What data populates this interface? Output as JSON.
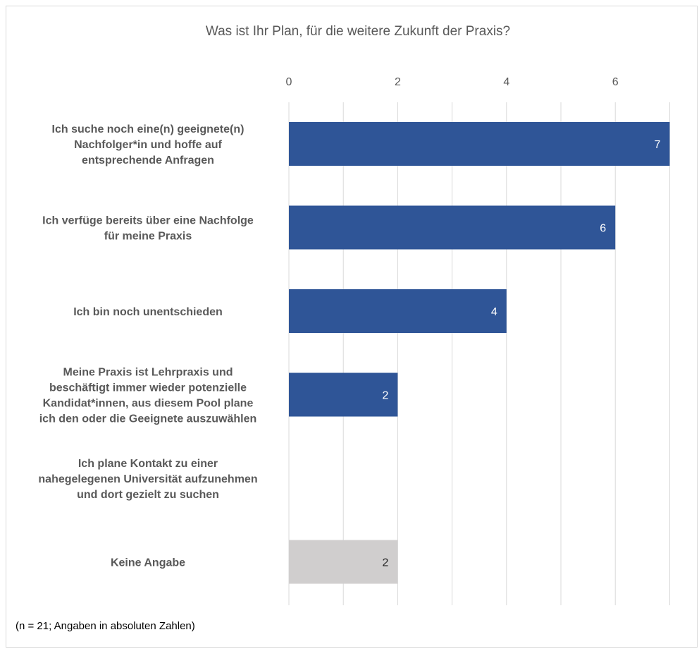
{
  "chart_data": {
    "type": "bar",
    "orientation": "horizontal",
    "title": "Was ist Ihr Plan, für die weitere Zukunft der Praxis?",
    "categories": [
      [
        "Ich suche noch eine(n) geeignete(n)",
        "Nachfolger*in und hoffe auf",
        "entsprechende Anfragen"
      ],
      [
        "Ich verfüge bereits über eine Nachfolge",
        "für meine Praxis"
      ],
      [
        "Ich bin noch unentschieden"
      ],
      [
        "Meine Praxis ist Lehrpraxis und",
        "beschäftigt immer wieder potenzielle",
        "Kandidat*innen, aus diesem Pool plane",
        "ich den oder die Geeignete auszuwählen"
      ],
      [
        "Ich plane Kontakt zu einer",
        "nahegelegenen Universität aufzunehmen",
        "und dort gezielt zu suchen"
      ],
      [
        "Keine Angabe"
      ]
    ],
    "values": [
      7,
      6,
      4,
      2,
      0,
      2
    ],
    "value_labels": [
      "7",
      "6",
      "4",
      "2",
      "",
      "2"
    ],
    "bar_colors": [
      "#2F5597",
      "#2F5597",
      "#2F5597",
      "#2F5597",
      "#2F5597",
      "#D0CECE"
    ],
    "label_colors": [
      "#ffffff",
      "#ffffff",
      "#ffffff",
      "#ffffff",
      "#ffffff",
      "#262626"
    ],
    "x_ticks": [
      0,
      2,
      4,
      6
    ],
    "xlim": [
      0,
      7
    ],
    "x_axis_position": "top",
    "grid": true,
    "xlabel": "",
    "ylabel": "",
    "footnote": "(n = 21; Angaben in absoluten Zahlen)"
  }
}
